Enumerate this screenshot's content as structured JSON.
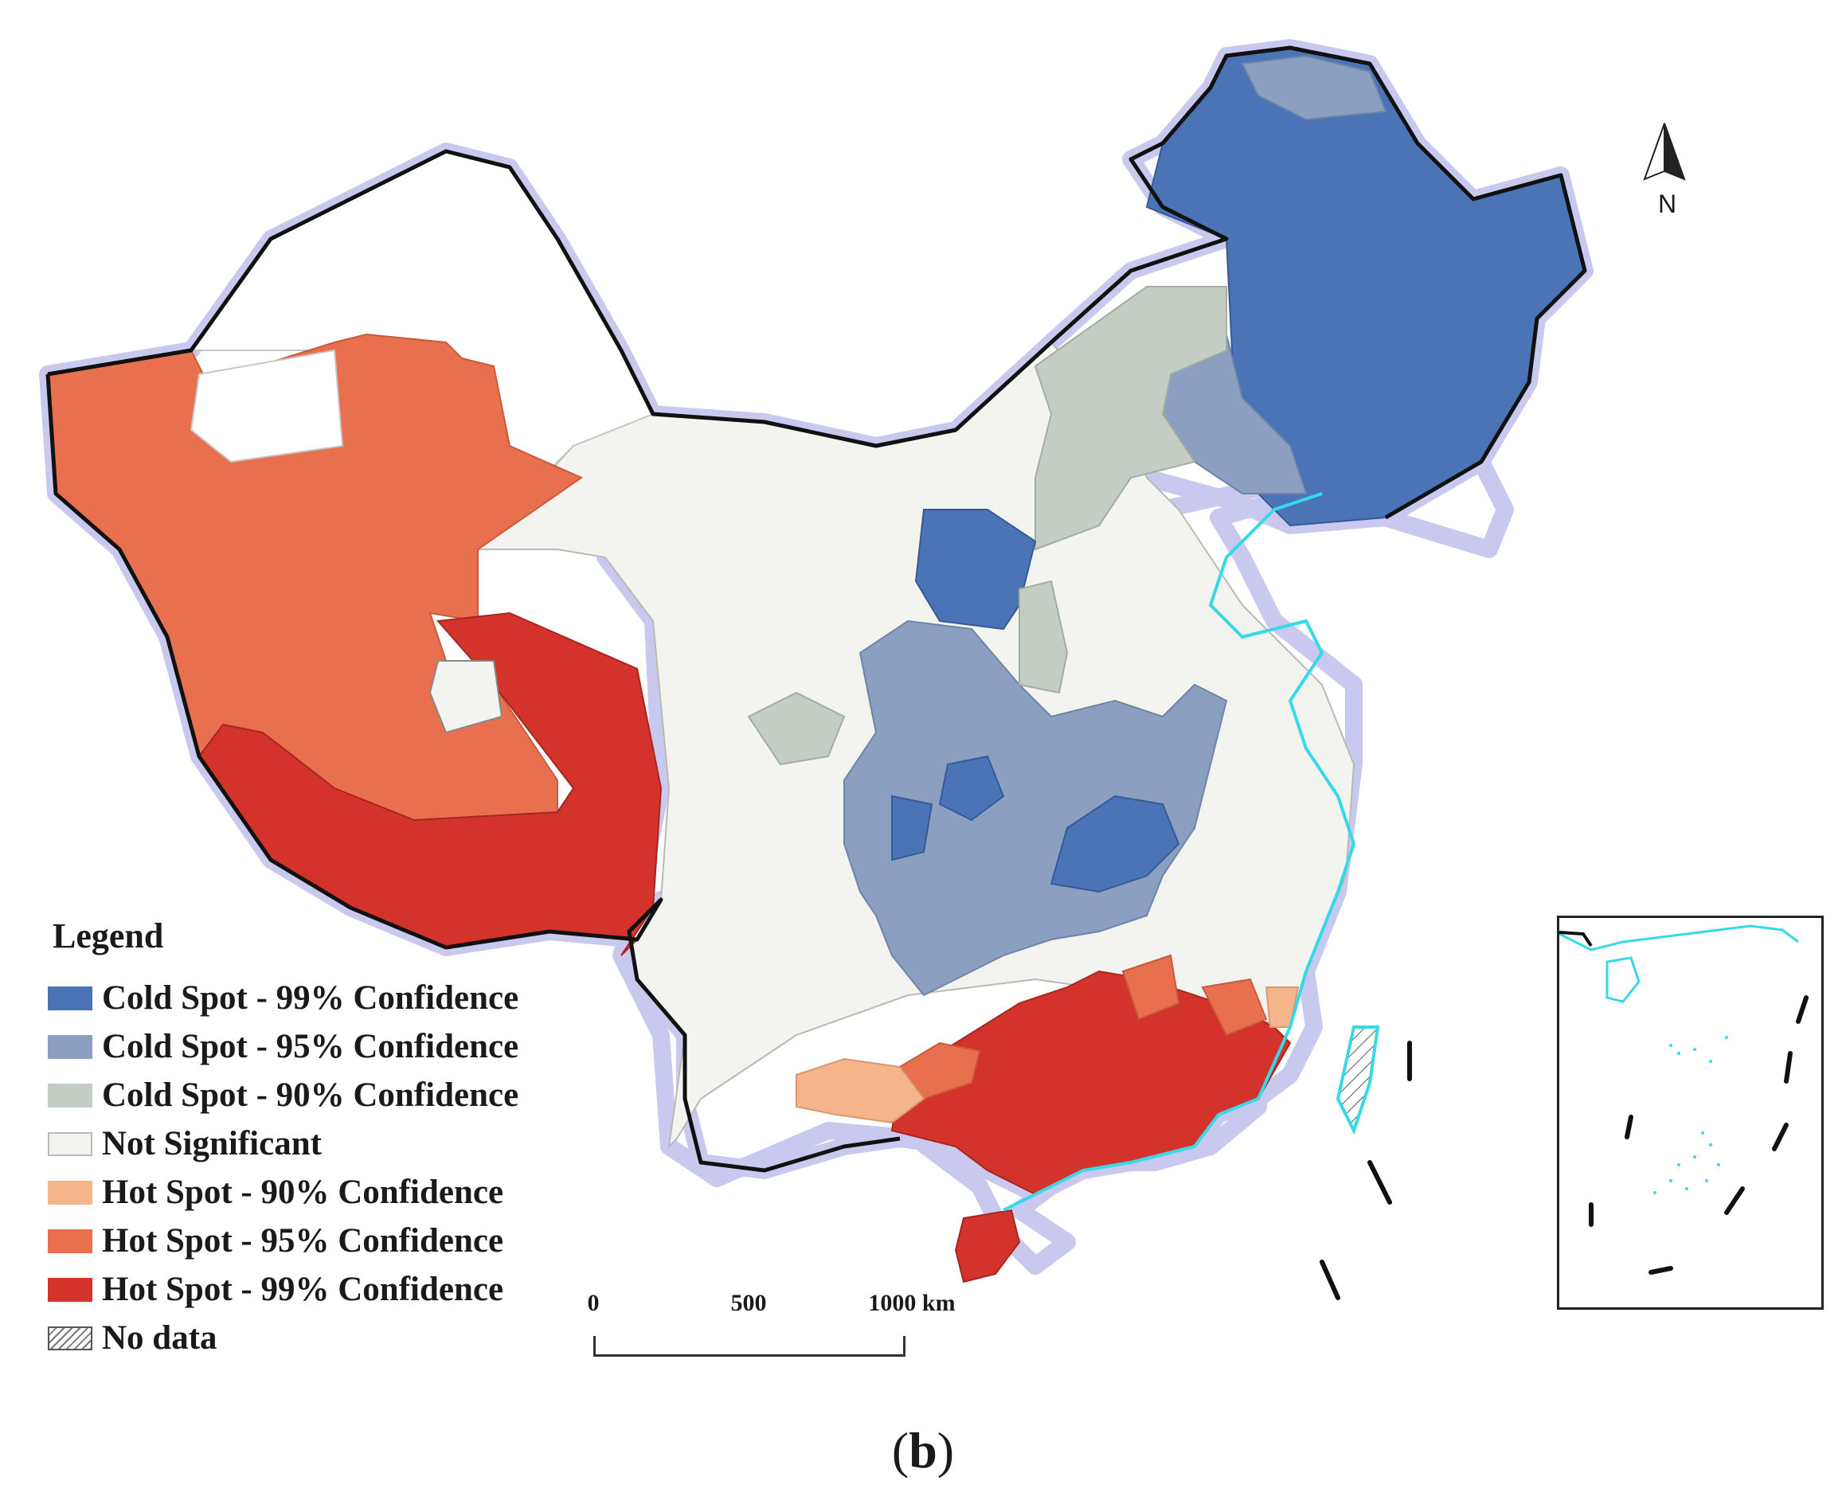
{
  "legend": {
    "title": "Legend",
    "items": [
      {
        "label": "Cold Spot - 99% Confidence",
        "color": "#4a74b5"
      },
      {
        "label": "Cold Spot - 95% Confidence",
        "color": "#8ba0c0"
      },
      {
        "label": "Cold Spot - 90% Confidence",
        "color": "#c3cdc4"
      },
      {
        "label": "Not Significant",
        "color": "#f3f4f0"
      },
      {
        "label": "Hot Spot - 90% Confidence",
        "color": "#f6b48a"
      },
      {
        "label": "Hot Spot - 95% Confidence",
        "color": "#e9704f"
      },
      {
        "label": "Hot Spot - 99% Confidence",
        "color": "#d4332b"
      },
      {
        "label": "No data",
        "color": "hatch"
      }
    ]
  },
  "scale_bar": {
    "labels": [
      "0",
      "500",
      "1000 km"
    ]
  },
  "north_arrow": {
    "label": "N"
  },
  "caption": {
    "open": "(",
    "letter": "b",
    "close": ")"
  },
  "colors": {
    "border_glow": "#c9c9f0",
    "coast": "#35d9e8",
    "outline": "#111111"
  }
}
